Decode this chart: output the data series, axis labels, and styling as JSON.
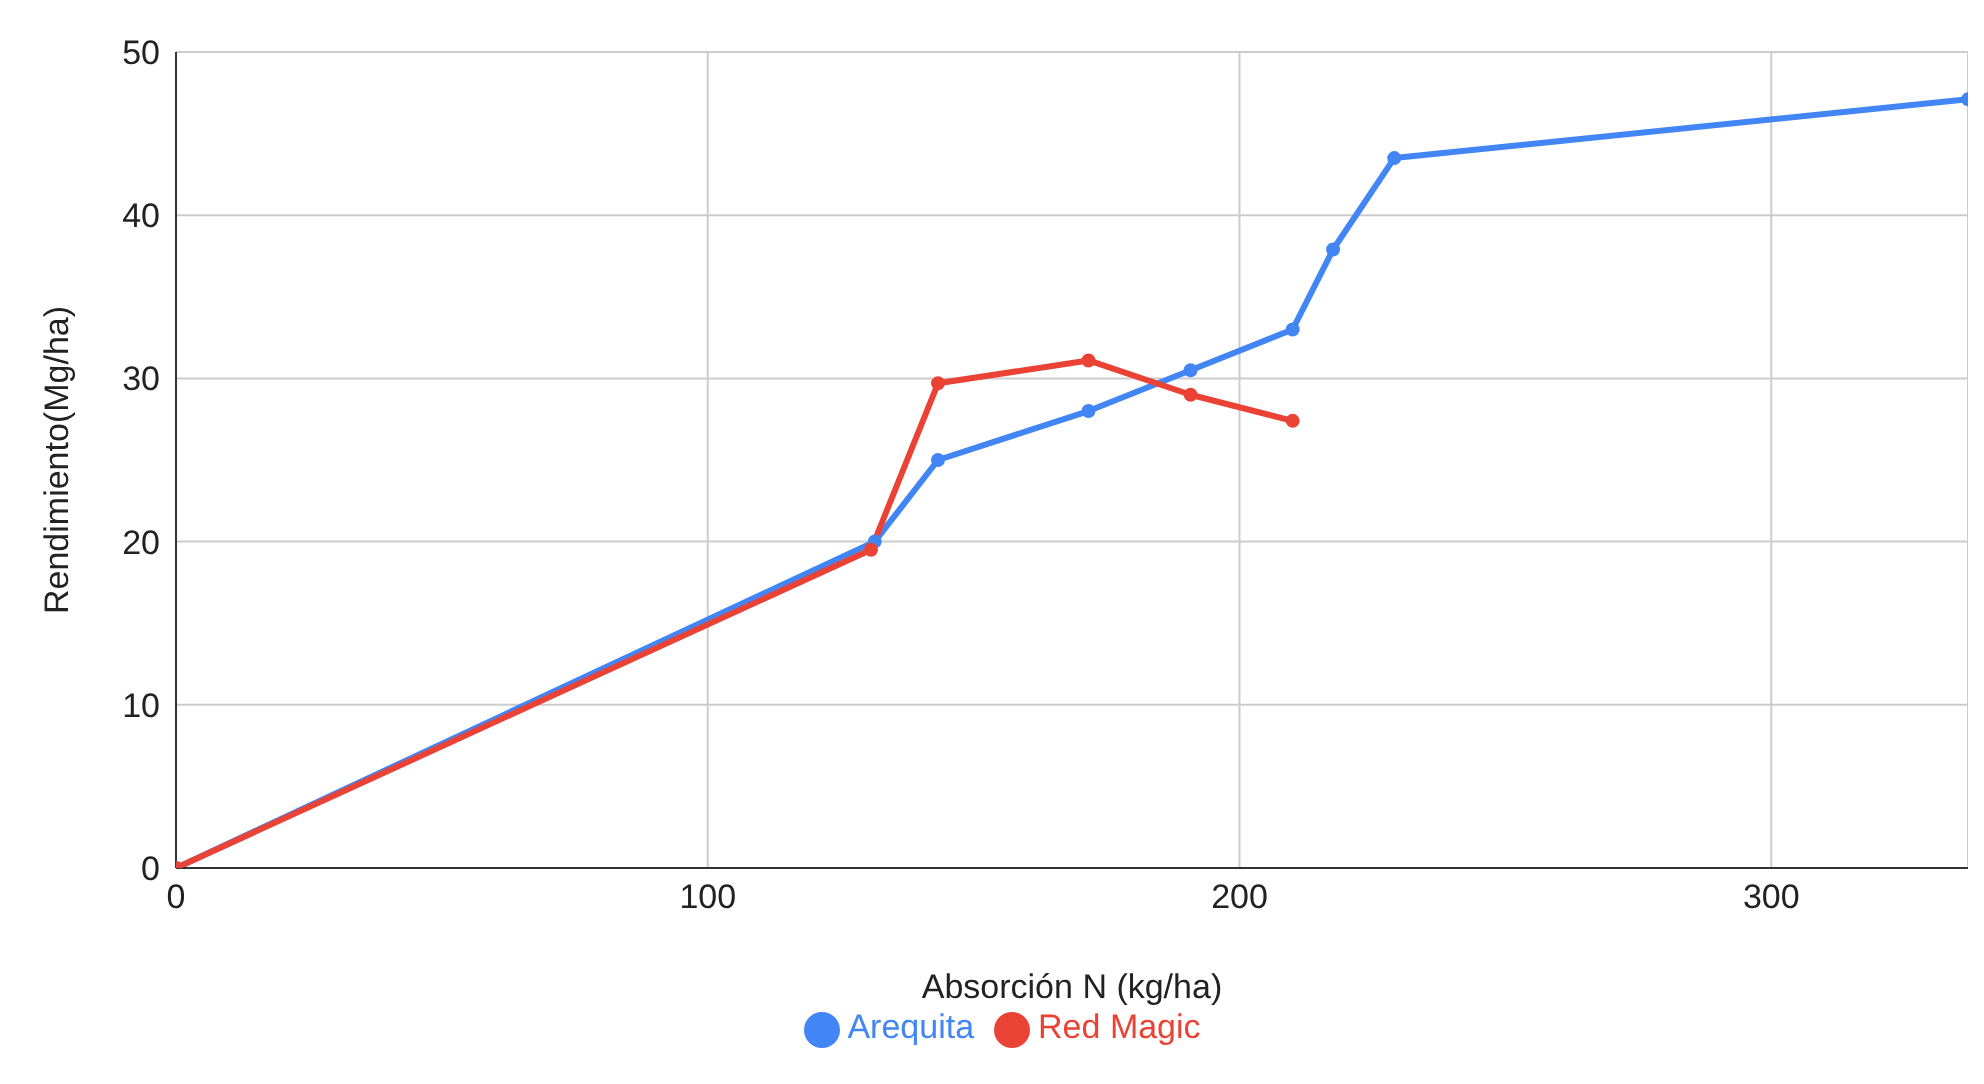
{
  "chart_data": {
    "type": "line",
    "xlabel": "Absorción N (kg/ha)",
    "ylabel": "Rendimiento(Mg/ha)",
    "xlim": [
      0,
      337
    ],
    "xticks": [
      0,
      100,
      200,
      300
    ],
    "ylim": [
      0,
      50
    ],
    "yticks": [
      0,
      10,
      20,
      30,
      40,
      50
    ],
    "grid": true,
    "legend": "bottom",
    "marker": "circle",
    "series": [
      {
        "name": "Arequita",
        "color": "#4285f4",
        "x": [
          0,
          131.4,
          143.3,
          171.6,
          190.8,
          210,
          217.6,
          229.1,
          337
        ],
        "values": [
          0,
          20,
          25,
          28,
          30.5,
          33,
          37.9,
          43.5,
          47.1
        ]
      },
      {
        "name": "Red Magic",
        "color": "#ea4335",
        "x": [
          0,
          130.7,
          143.3,
          171.6,
          190.8,
          210
        ],
        "values": [
          0,
          19.5,
          29.7,
          31.1,
          29,
          27.4
        ]
      }
    ]
  }
}
